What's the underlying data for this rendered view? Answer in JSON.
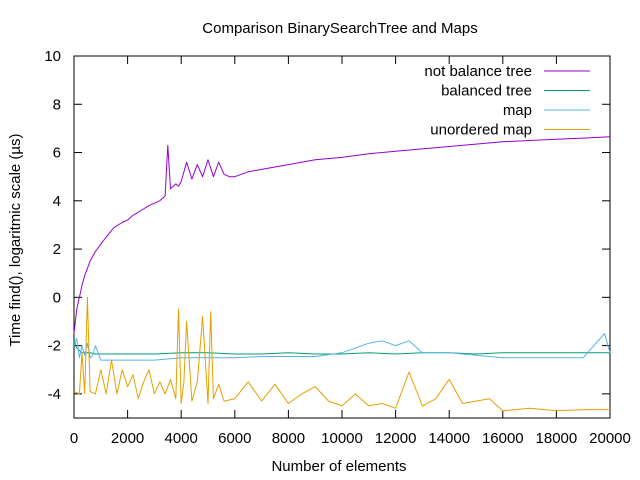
{
  "chart_data": {
    "type": "line",
    "title": "Comparison BinarySearchTree and Maps",
    "xlabel": "Number of elements",
    "ylabel": "Time find(), logaritmic scale (µs)",
    "xlim": [
      0,
      20000
    ],
    "ylim": [
      -5,
      10
    ],
    "xticks": [
      0,
      2000,
      4000,
      6000,
      8000,
      10000,
      12000,
      14000,
      16000,
      18000,
      20000
    ],
    "yticks": [
      -4,
      -2,
      0,
      2,
      4,
      6,
      8,
      10
    ],
    "grid": false,
    "legend_position": "top-right",
    "series": [
      {
        "name": "not balance tree",
        "color": "#9400d3",
        "x": [
          0,
          100,
          200,
          300,
          400,
          500,
          600,
          800,
          1000,
          1200,
          1500,
          1800,
          2000,
          2200,
          2500,
          2800,
          3000,
          3200,
          3400,
          3500,
          3600,
          3700,
          3800,
          3900,
          4000,
          4200,
          4400,
          4600,
          4800,
          5000,
          5200,
          5400,
          5600,
          5800,
          6000,
          6500,
          7000,
          7500,
          8000,
          9000,
          10000,
          11000,
          12000,
          13000,
          14000,
          15000,
          16000,
          17000,
          18000,
          19000,
          20000
        ],
        "y": [
          -1.5,
          -0.5,
          0.0,
          0.5,
          0.9,
          1.2,
          1.5,
          1.9,
          2.2,
          2.5,
          2.9,
          3.1,
          3.2,
          3.4,
          3.6,
          3.8,
          3.9,
          4.0,
          4.2,
          6.3,
          4.5,
          4.6,
          4.7,
          4.6,
          4.8,
          5.6,
          4.9,
          5.5,
          5.0,
          5.7,
          5.0,
          5.6,
          5.1,
          5.0,
          5.0,
          5.2,
          5.3,
          5.4,
          5.5,
          5.7,
          5.8,
          5.95,
          6.05,
          6.15,
          6.25,
          6.35,
          6.45,
          6.5,
          6.55,
          6.6,
          6.65
        ]
      },
      {
        "name": "balanced tree",
        "color": "#009e73",
        "x": [
          0,
          100,
          200,
          300,
          400,
          500,
          600,
          800,
          1000,
          2000,
          3000,
          4000,
          5000,
          6000,
          7000,
          8000,
          9000,
          10000,
          11000,
          12000,
          13000,
          14000,
          15000,
          16000,
          17000,
          18000,
          19000,
          20000
        ],
        "y": [
          -1.8,
          -2.1,
          -2.2,
          -2.3,
          -2.3,
          -2.3,
          -2.3,
          -2.35,
          -2.35,
          -2.35,
          -2.35,
          -2.3,
          -2.3,
          -2.35,
          -2.35,
          -2.3,
          -2.35,
          -2.35,
          -2.3,
          -2.35,
          -2.3,
          -2.3,
          -2.35,
          -2.3,
          -2.3,
          -2.3,
          -2.3,
          -2.3
        ]
      },
      {
        "name": "map",
        "color": "#56b4e9",
        "x": [
          0,
          100,
          200,
          300,
          400,
          500,
          600,
          700,
          800,
          1000,
          2000,
          3000,
          4000,
          5000,
          6000,
          7000,
          8000,
          9000,
          10000,
          11000,
          11500,
          12000,
          12500,
          13000,
          14000,
          15000,
          16000,
          17000,
          18000,
          19000,
          19800,
          20000
        ],
        "y": [
          -2.0,
          -1.7,
          -2.5,
          -2.0,
          -2.4,
          -1.9,
          -2.5,
          -2.4,
          -2.0,
          -2.6,
          -2.6,
          -2.6,
          -2.5,
          -2.5,
          -2.5,
          -2.45,
          -2.45,
          -2.45,
          -2.3,
          -1.9,
          -1.8,
          -2.0,
          -1.8,
          -2.3,
          -2.3,
          -2.4,
          -2.5,
          -2.5,
          -2.5,
          -2.5,
          -1.5,
          -2.3
        ]
      },
      {
        "name": "unordered map",
        "color": "#e69f00",
        "x": [
          0,
          200,
          300,
          400,
          500,
          600,
          800,
          1000,
          1200,
          1400,
          1600,
          1800,
          2000,
          2200,
          2400,
          2600,
          2800,
          3000,
          3200,
          3400,
          3600,
          3800,
          3900,
          4000,
          4100,
          4200,
          4400,
          4600,
          4800,
          5000,
          5100,
          5200,
          5400,
          5600,
          6000,
          6500,
          7000,
          7500,
          8000,
          8500,
          9000,
          9500,
          10000,
          10500,
          11000,
          11500,
          12000,
          12500,
          13000,
          13500,
          14000,
          14500,
          15000,
          15500,
          16000,
          17000,
          18000,
          19000,
          20000
        ],
        "y": [
          -3.9,
          -4.0,
          -2.3,
          -4.0,
          0.0,
          -3.9,
          -4.0,
          -3.0,
          -4.0,
          -2.6,
          -4.0,
          -3.0,
          -3.7,
          -3.2,
          -4.2,
          -3.5,
          -3.0,
          -4.0,
          -3.5,
          -4.0,
          -3.4,
          -4.2,
          -0.5,
          -4.4,
          -3.5,
          -1.0,
          -4.3,
          -3.5,
          -0.8,
          -4.4,
          -0.6,
          -4.2,
          -3.6,
          -4.3,
          -4.2,
          -3.5,
          -4.3,
          -3.6,
          -4.4,
          -4.0,
          -3.7,
          -4.3,
          -4.5,
          -4.0,
          -4.5,
          -4.4,
          -4.6,
          -3.1,
          -4.5,
          -4.2,
          -3.4,
          -4.4,
          -4.3,
          -4.2,
          -4.7,
          -4.6,
          -4.7,
          -4.65,
          -4.65
        ]
      }
    ]
  }
}
